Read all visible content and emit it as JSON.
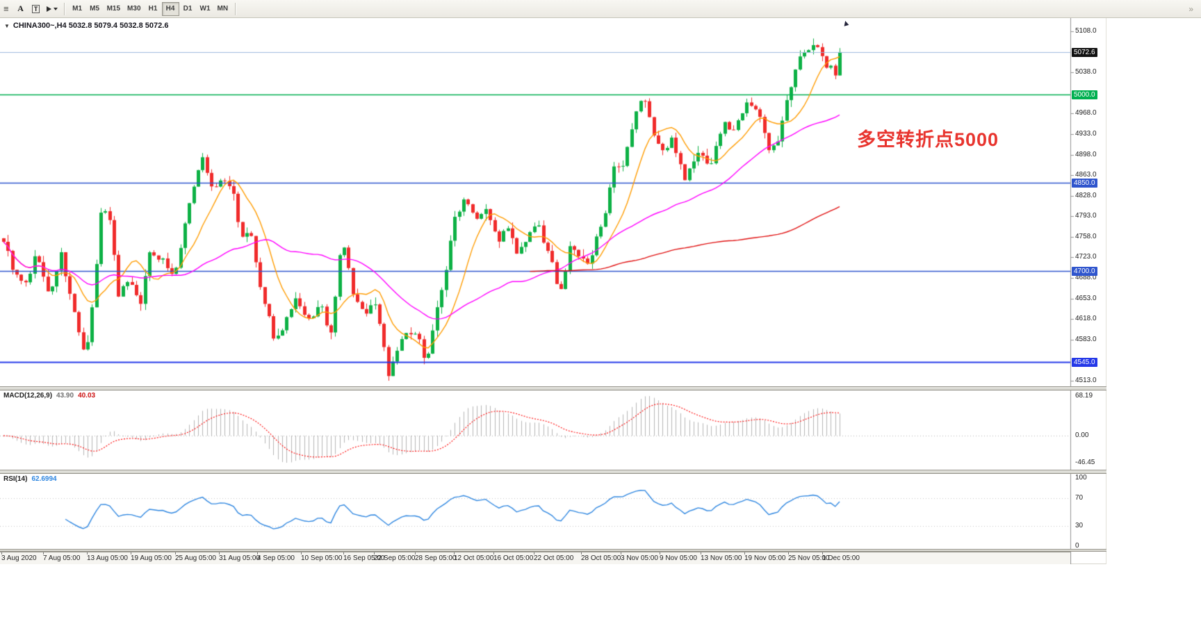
{
  "toolbar": {
    "label_tool": "A",
    "text_tool": "T",
    "timeframes": [
      "M1",
      "M5",
      "M15",
      "M30",
      "H1",
      "H4",
      "D1",
      "W1",
      "MN"
    ],
    "active_timeframe": "H4",
    "icons": {
      "grip": "≡",
      "overflow": "»"
    }
  },
  "chart": {
    "header": "CHINA300~,H4 5032.8 5079.4 5032.8 5072.6",
    "symbol": "CHINA300~",
    "timeframe": "H4",
    "ohlc": {
      "open": "5032.8",
      "high": "5079.4",
      "low": "5032.8",
      "close": "5072.6"
    },
    "collapse_icon": "▼",
    "cursor_icon": "▲",
    "annotation": {
      "text": "多空转折点5000",
      "color": "#e8342e"
    },
    "current_price": "5072.6",
    "levels": [
      {
        "label": "5000.0",
        "price": 5000.0,
        "color": "#00b050",
        "width": 1.6
      },
      {
        "label": "4850.0",
        "price": 4850.0,
        "color": "#2f55cd",
        "width": 1.6
      },
      {
        "label": "4700.0",
        "price": 4700.0,
        "color": "#2f55cd",
        "width": 1.6
      },
      {
        "label": "4545.0",
        "price": 4545.0,
        "color": "#2438e8",
        "width": 2
      }
    ],
    "axis_ticks": [
      "5108.0",
      "5038.0",
      "4968.0",
      "4933.0",
      "4898.0",
      "4863.0",
      "4828.0",
      "4793.0",
      "4758.0",
      "4723.0",
      "4688.0",
      "4653.0",
      "4618.0",
      "4583.0",
      "4513.0"
    ]
  },
  "macd": {
    "name": "MACD(12,26,9)",
    "value_main": "43.90",
    "value_signal": "40.03"
  },
  "rsi": {
    "name": "RSI(14)",
    "value": "62.6994"
  },
  "chart_data": {
    "type": "candlestick",
    "symbol": "CHINA300~",
    "period": "H4",
    "x_axis": "time (H4 bars, Aug 2020 – Dec 2020)",
    "price_axis": {
      "min": 4513.0,
      "max": 5108.0,
      "tick_step": 35.0
    },
    "current_price": 5072.6,
    "last_bar": {
      "open": 5032.8,
      "high": 5079.4,
      "low": 5032.8,
      "close": 5072.6
    },
    "colors": {
      "up": "#0db145",
      "down": "#f02b2b",
      "bid_line": "#9db8dd",
      "macd_hist": "#b4b4b4",
      "macd_signal": "#ff0000",
      "rsi": "#2e86e0",
      "indicator_level": "#c0c0c0",
      "current_label_bg": "#111111",
      "axis_text": "#1c1c1c"
    },
    "candles": {
      "count": 190,
      "seed": 9,
      "noise": 9,
      "wick": 12,
      "close_path_anchors": [
        [
          0.0,
          4755
        ],
        [
          0.012,
          4700
        ],
        [
          0.025,
          4668
        ],
        [
          0.04,
          4730
        ],
        [
          0.055,
          4650
        ],
        [
          0.068,
          4730
        ],
        [
          0.082,
          4640
        ],
        [
          0.098,
          4550
        ],
        [
          0.104,
          4600
        ],
        [
          0.112,
          4720
        ],
        [
          0.118,
          4815
        ],
        [
          0.128,
          4780
        ],
        [
          0.138,
          4660
        ],
        [
          0.15,
          4690
        ],
        [
          0.163,
          4645
        ],
        [
          0.175,
          4730
        ],
        [
          0.19,
          4728
        ],
        [
          0.203,
          4690
        ],
        [
          0.215,
          4760
        ],
        [
          0.228,
          4850
        ],
        [
          0.238,
          4898
        ],
        [
          0.25,
          4832
        ],
        [
          0.262,
          4855
        ],
        [
          0.275,
          4830
        ],
        [
          0.285,
          4752
        ],
        [
          0.295,
          4765
        ],
        [
          0.31,
          4642
        ],
        [
          0.325,
          4576
        ],
        [
          0.338,
          4620
        ],
        [
          0.35,
          4645
        ],
        [
          0.363,
          4602
        ],
        [
          0.378,
          4640
        ],
        [
          0.392,
          4586
        ],
        [
          0.405,
          4755
        ],
        [
          0.418,
          4660
        ],
        [
          0.43,
          4622
        ],
        [
          0.443,
          4650
        ],
        [
          0.452,
          4600
        ],
        [
          0.46,
          4524
        ],
        [
          0.472,
          4576
        ],
        [
          0.483,
          4592
        ],
        [
          0.495,
          4580
        ],
        [
          0.505,
          4546
        ],
        [
          0.515,
          4612
        ],
        [
          0.528,
          4700
        ],
        [
          0.54,
          4790
        ],
        [
          0.552,
          4832
        ],
        [
          0.565,
          4800
        ],
        [
          0.578,
          4820
        ],
        [
          0.59,
          4752
        ],
        [
          0.602,
          4772
        ],
        [
          0.615,
          4722
        ],
        [
          0.628,
          4752
        ],
        [
          0.64,
          4772
        ],
        [
          0.652,
          4722
        ],
        [
          0.665,
          4662
        ],
        [
          0.678,
          4742
        ],
        [
          0.69,
          4722
        ],
        [
          0.7,
          4702
        ],
        [
          0.715,
          4782
        ],
        [
          0.73,
          4870
        ],
        [
          0.74,
          4862
        ],
        [
          0.755,
          4950
        ],
        [
          0.765,
          5000
        ],
        [
          0.775,
          4940
        ],
        [
          0.79,
          4902
        ],
        [
          0.8,
          4922
        ],
        [
          0.815,
          4862
        ],
        [
          0.83,
          4900
        ],
        [
          0.845,
          4882
        ],
        [
          0.86,
          4950
        ],
        [
          0.875,
          4940
        ],
        [
          0.89,
          5002
        ],
        [
          0.9,
          4980
        ],
        [
          0.915,
          4910
        ],
        [
          0.925,
          4922
        ],
        [
          0.94,
          5000
        ],
        [
          0.955,
          5070
        ],
        [
          0.97,
          5098
        ],
        [
          0.985,
          5040
        ],
        [
          1.0,
          5072.6
        ]
      ]
    },
    "moving_averages": [
      {
        "name": "MA fast",
        "period": 10,
        "color": "#ff9c00"
      },
      {
        "name": "MA mid",
        "period": 40,
        "color": "#ff00ff"
      },
      {
        "name": "MA slow",
        "period": 120,
        "color": "#e01010",
        "full_window_only": true
      }
    ],
    "macd": {
      "fast": 12,
      "slow": 26,
      "signal": 9,
      "axis_labels": [
        "68.19",
        "0.00",
        "-46.45"
      ]
    },
    "rsi": {
      "period": 14,
      "levels": [
        70,
        30
      ],
      "axis_labels": [
        "100",
        "70",
        "30",
        "0"
      ]
    },
    "timeline": [
      {
        "label": "3 Aug 2020",
        "f": 0.002
      },
      {
        "label": "7 Aug 05:00",
        "f": 0.051
      },
      {
        "label": "13 Aug 05:00",
        "f": 0.103
      },
      {
        "label": "19 Aug 05:00",
        "f": 0.155
      },
      {
        "label": "25 Aug 05:00",
        "f": 0.208
      },
      {
        "label": "31 Aug 05:00",
        "f": 0.26
      },
      {
        "label": "4 Sep 05:00",
        "f": 0.306
      },
      {
        "label": "10 Sep 05:00",
        "f": 0.358
      },
      {
        "label": "16 Sep 05:00",
        "f": 0.408
      },
      {
        "label": "22 Sep 05:00",
        "f": 0.445
      },
      {
        "label": "28 Sep 05:00",
        "f": 0.493
      },
      {
        "label": "12 Oct 05:00",
        "f": 0.54
      },
      {
        "label": "16 Oct 05:00",
        "f": 0.587
      },
      {
        "label": "22 Oct 05:00",
        "f": 0.635
      },
      {
        "label": "28 Oct 05:00",
        "f": 0.691
      },
      {
        "label": "3 Nov 05:00",
        "f": 0.738
      },
      {
        "label": "9 Nov 05:00",
        "f": 0.784
      },
      {
        "label": "13 Nov 05:00",
        "f": 0.833
      },
      {
        "label": "19 Nov 05:00",
        "f": 0.885
      },
      {
        "label": "25 Nov 05:00",
        "f": 0.937
      },
      {
        "label": "1 Dec 05:00",
        "f": 0.978
      }
    ]
  }
}
